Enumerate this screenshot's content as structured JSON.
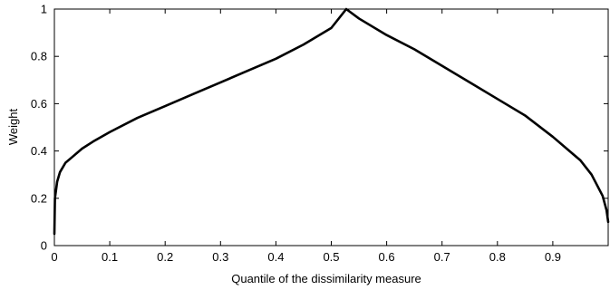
{
  "chart_data": {
    "type": "line",
    "title": "",
    "xlabel": "Quantile of the dissimilarity measure",
    "ylabel": "Weight",
    "xlim": [
      0,
      1
    ],
    "ylim": [
      0,
      1
    ],
    "grid": false,
    "legend": "none",
    "xticks": [
      0,
      0.1,
      0.2,
      0.3,
      0.4,
      0.5,
      0.6,
      0.7,
      0.8,
      0.9
    ],
    "xtick_labels": [
      "0",
      "0.1",
      "0.2",
      "0.3",
      "0.4",
      "0.5",
      "0.6",
      "0.7",
      "0.8",
      "0.9"
    ],
    "yticks": [
      0,
      0.2,
      0.4,
      0.6,
      0.8,
      1
    ],
    "ytick_labels": [
      "0",
      "0.2",
      "0.4",
      "0.6",
      "0.8",
      "1"
    ],
    "line_color": "#000000",
    "series": [
      {
        "x": [
          0,
          0.001,
          0.005,
          0.01,
          0.02,
          0.03,
          0.05,
          0.07,
          0.1,
          0.15,
          0.2,
          0.25,
          0.3,
          0.35,
          0.4,
          0.45,
          0.5,
          0.527,
          0.55,
          0.6,
          0.65,
          0.7,
          0.75,
          0.8,
          0.85,
          0.9,
          0.95,
          0.97,
          0.99,
          0.997,
          1.0
        ],
        "y": [
          0.05,
          0.2,
          0.27,
          0.31,
          0.35,
          0.37,
          0.41,
          0.44,
          0.48,
          0.54,
          0.59,
          0.64,
          0.69,
          0.74,
          0.79,
          0.85,
          0.92,
          1.0,
          0.96,
          0.89,
          0.83,
          0.76,
          0.69,
          0.62,
          0.55,
          0.46,
          0.36,
          0.3,
          0.21,
          0.15,
          0.1
        ]
      }
    ]
  }
}
